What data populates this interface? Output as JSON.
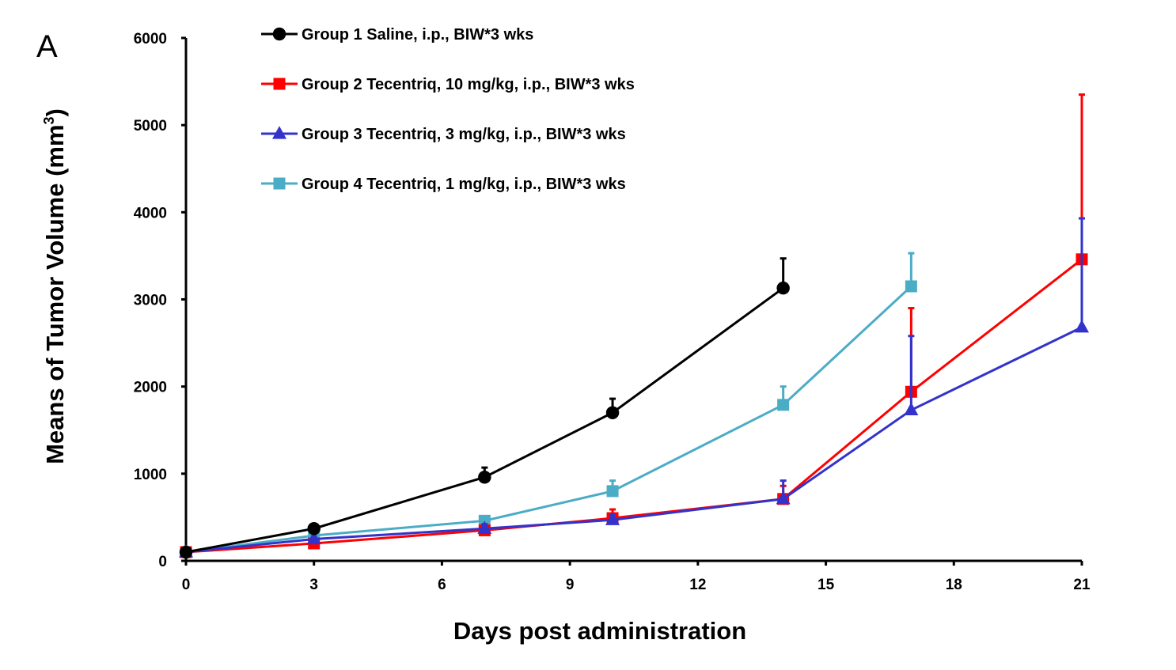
{
  "chart_data": {
    "type": "line",
    "panel_label": "A",
    "title": "",
    "xlabel": "Days post administration",
    "ylabel_main": "Means of Tumor Volume (mm",
    "ylabel_sup": "3",
    "ylabel_end": ")",
    "xlim": [
      0,
      21
    ],
    "ylim": [
      0,
      6000
    ],
    "xticks": [
      0,
      3,
      6,
      9,
      12,
      15,
      18,
      21
    ],
    "yticks": [
      0,
      1000,
      2000,
      3000,
      4000,
      5000,
      6000
    ],
    "xtick_labels": [
      "0",
      "3",
      "6",
      "9",
      "12",
      "15",
      "18",
      "21"
    ],
    "ytick_labels": [
      "0",
      "1000",
      "2000",
      "3000",
      "4000",
      "5000",
      "6000"
    ],
    "grid": false,
    "legend_position": "top-left",
    "series": [
      {
        "name": "Group 1 Saline, i.p., BIW*3 wks",
        "color": "#000000",
        "marker": "circle",
        "x": [
          0,
          3,
          7,
          10,
          14
        ],
        "y": [
          100,
          370,
          960,
          1700,
          3130
        ],
        "err": [
          0,
          30,
          110,
          160,
          340
        ]
      },
      {
        "name": "Group 2 Tecentriq, 10 mg/kg, i.p., BIW*3 wks",
        "color": "#ff0000",
        "marker": "square",
        "x": [
          0,
          3,
          7,
          10,
          14,
          17,
          21
        ],
        "y": [
          100,
          200,
          350,
          490,
          710,
          1940,
          3460
        ],
        "err": [
          0,
          30,
          50,
          100,
          150,
          960,
          1890
        ]
      },
      {
        "name": "Group 3 Tecentriq, 3 mg/kg, i.p., BIW*3 wks",
        "color": "#3333cc",
        "marker": "triangle",
        "x": [
          0,
          3,
          7,
          10,
          14,
          17,
          21
        ],
        "y": [
          100,
          250,
          370,
          470,
          710,
          1730,
          2680
        ],
        "err": [
          0,
          30,
          50,
          60,
          210,
          850,
          1250
        ]
      },
      {
        "name": "Group 4 Tecentriq, 1 mg/kg, i.p., BIW*3 wks",
        "color": "#4bacc6",
        "marker": "square",
        "x": [
          0,
          3,
          7,
          10,
          14,
          17
        ],
        "y": [
          100,
          290,
          460,
          800,
          1790,
          3150
        ],
        "err": [
          0,
          30,
          50,
          120,
          210,
          380
        ]
      }
    ]
  }
}
